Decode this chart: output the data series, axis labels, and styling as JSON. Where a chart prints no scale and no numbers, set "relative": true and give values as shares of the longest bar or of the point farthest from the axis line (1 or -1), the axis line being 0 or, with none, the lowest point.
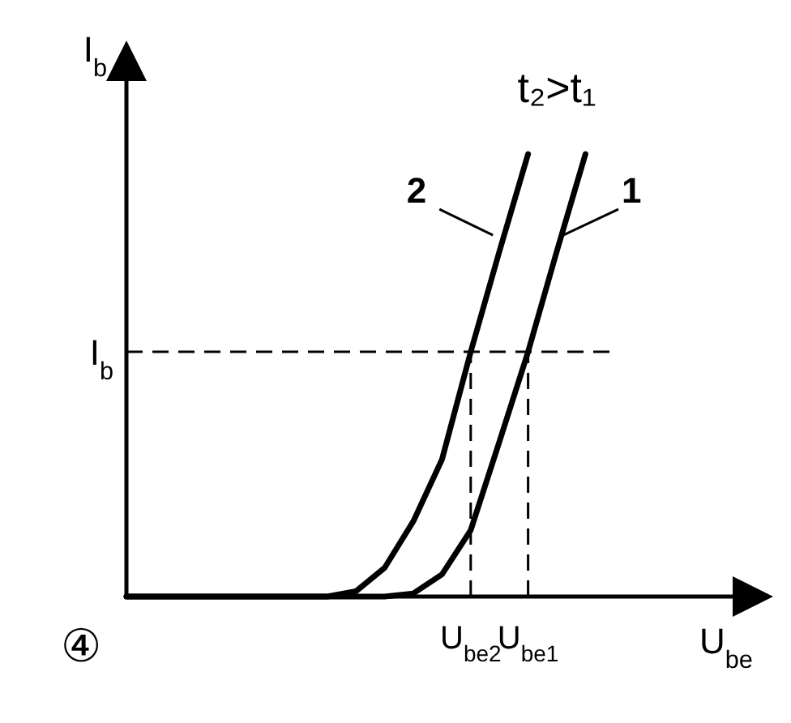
{
  "chart_data": {
    "type": "line",
    "relative": true,
    "xlabel": "U$_{be}$",
    "ylabel": "I$_{b}$",
    "categories": [
      null,
      null,
      null,
      null,
      null,
      null,
      null,
      null,
      null,
      null,
      null,
      null,
      "U$_{be2}$",
      null,
      "U$_{be1}$",
      null,
      null,
      null,
      null,
      null,
      null,
      null
    ],
    "series": [
      {
        "name": "2",
        "color": "#000000",
        "values": [
          0,
          0,
          0,
          0,
          0,
          0,
          0,
          0,
          0.012,
          0.065,
          0.17,
          0.31,
          0.553,
          0.78,
          1,
          null,
          null,
          null,
          null,
          null,
          null,
          null
        ]
      },
      {
        "name": "1",
        "color": "#000000",
        "values": [
          0,
          0,
          0,
          0,
          0,
          0,
          0,
          0,
          0,
          0,
          0.007,
          0.05,
          0.15,
          0.35,
          0.553,
          0.78,
          1,
          null,
          null,
          null,
          null,
          null
        ]
      }
    ],
    "ref_lines": [
      {
        "axis": "y",
        "value": 0.553,
        "label": "I$_{b}$",
        "line_style": "dashed"
      },
      {
        "axis": "x",
        "value": "U$_{be2}$",
        "line_style": "dashed"
      },
      {
        "axis": "x",
        "value": "U$_{be1}$",
        "line_style": "dashed"
      }
    ],
    "annotations": [
      "t₂>t₁",
      "④"
    ]
  }
}
